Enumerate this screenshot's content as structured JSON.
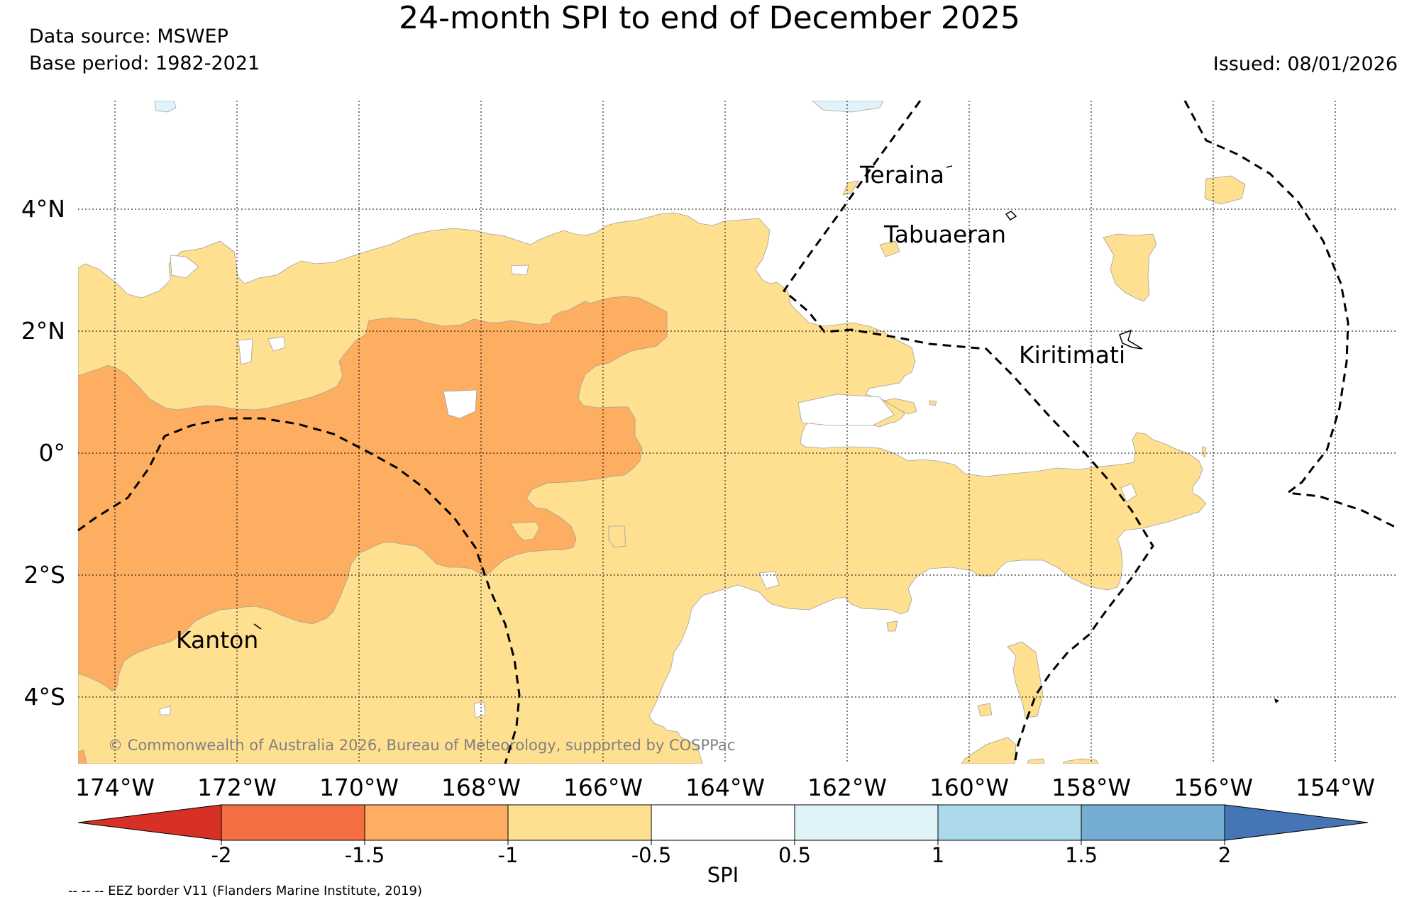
{
  "title": "24-month SPI to end of December 2025",
  "data_source": "Data source: MSWEP",
  "base_period": "Base period: 1982-2021",
  "issued": "Issued: 08/01/2026",
  "copyright": "© Commonwealth of Australia 2026, Bureau of Meteorology, supported by COSPPac",
  "eez_note": "-- -- -- EEZ border V11 (Flanders Marine Institute, 2019)",
  "longitude_labels": [
    "174°W",
    "172°W",
    "170°W",
    "168°W",
    "166°W",
    "164°W",
    "162°W",
    "160°W",
    "158°W",
    "156°W",
    "154°W"
  ],
  "latitude_labels": [
    "4°N",
    "2°N",
    "0°",
    "2°S",
    "4°S"
  ],
  "place_labels": [
    "Teraina",
    "Tabuaeran",
    "Kiritimati",
    "Kanton"
  ],
  "colorbar": {
    "label": "SPI",
    "ticks": [
      "-2",
      "-1.5",
      "-1",
      "-0.5",
      "0.5",
      "1",
      "1.5",
      "2"
    ],
    "colors": [
      "#d73027",
      "#f46d43",
      "#fdae61",
      "#fee090",
      "#ffffff",
      "#e0f3f8",
      "#abd9e9",
      "#74add1",
      "#4575b4"
    ]
  },
  "legend_colors": {
    "dry_moderate": "#fdae61",
    "dry_mild": "#fee090",
    "wet_mild": "#e0f3f8"
  }
}
